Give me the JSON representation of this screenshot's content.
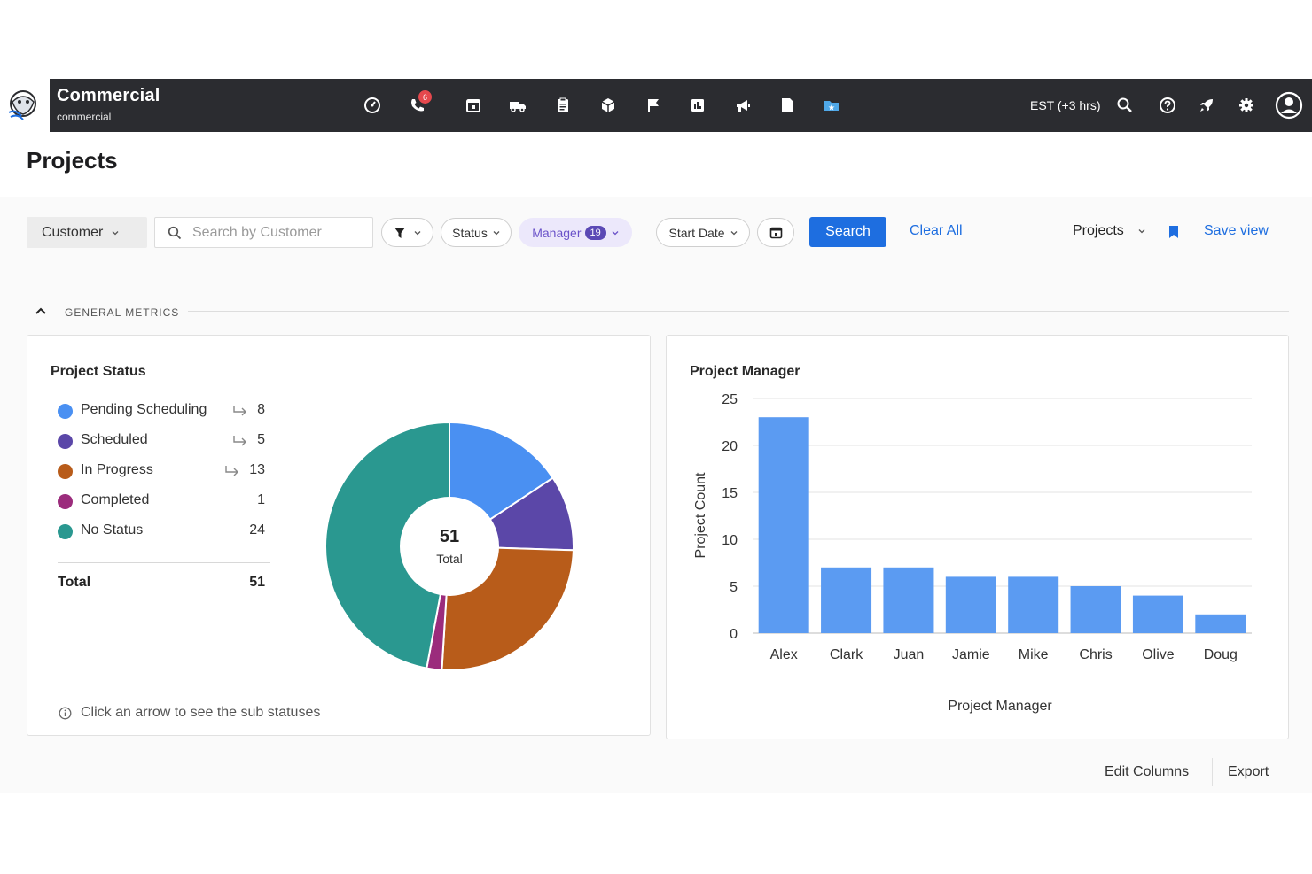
{
  "header": {
    "app_title": "Commercial",
    "app_subtitle": "commercial",
    "call_badge": "6",
    "timezone": "EST (+3 hrs)",
    "nav_icons": [
      "speedometer-icon",
      "phone-icon",
      "calendar-icon",
      "truck-icon",
      "clipboard-icon",
      "cube-icon",
      "flag-icon",
      "bar-chart-icon",
      "megaphone-icon",
      "document-icon",
      "folder-star-icon"
    ],
    "right_icons": [
      "search-icon",
      "help-icon",
      "rocket-icon",
      "gear-icon",
      "user-avatar-icon"
    ]
  },
  "page": {
    "title": "Projects"
  },
  "filters": {
    "customer_label": "Customer",
    "search_placeholder": "Search by Customer",
    "status_label": "Status",
    "manager_label": "Manager",
    "manager_count": "19",
    "start_date_label": "Start Date",
    "search_button": "Search",
    "clear_all": "Clear All",
    "view_label": "Projects",
    "save_view": "Save view"
  },
  "section": {
    "label": "GENERAL METRICS"
  },
  "status_card": {
    "title": "Project Status",
    "items": [
      {
        "label": "Pending Scheduling",
        "value": "8",
        "has_arrow": true,
        "color": "#4a90f2"
      },
      {
        "label": "Scheduled",
        "value": "5",
        "has_arrow": true,
        "color": "#5b47a8"
      },
      {
        "label": "In Progress",
        "value": "13",
        "has_arrow": true,
        "color": "#b85c1a"
      },
      {
        "label": "Completed",
        "value": "1",
        "has_arrow": false,
        "color": "#9b2c7c"
      },
      {
        "label": "No Status",
        "value": "24",
        "has_arrow": false,
        "color": "#2a9890"
      }
    ],
    "total_label": "Total",
    "total_value": "51",
    "center_value": "51",
    "center_label": "Total",
    "hint": "Click an arrow to see the sub statuses"
  },
  "chart_data": [
    {
      "type": "pie",
      "title": "Project Status",
      "categories": [
        "Pending Scheduling",
        "Scheduled",
        "In Progress",
        "Completed",
        "No Status"
      ],
      "values": [
        8,
        5,
        13,
        1,
        24
      ],
      "colors": [
        "#4a90f2",
        "#5b47a8",
        "#b85c1a",
        "#9b2c7c",
        "#2a9890"
      ]
    },
    {
      "type": "bar",
      "title": "Project Manager",
      "categories": [
        "Alex",
        "Clark",
        "Juan",
        "Jamie",
        "Mike",
        "Chris",
        "Olive",
        "Doug"
      ],
      "values": [
        23,
        7,
        7,
        6,
        6,
        5,
        4,
        2
      ],
      "xlabel": "Project Manager",
      "ylabel": "Project Count",
      "ylim": [
        0,
        25
      ],
      "yticks": [
        0,
        5,
        10,
        15,
        20,
        25
      ],
      "bar_color": "#5b9bf2",
      "grid": true
    }
  ],
  "footer": {
    "edit_columns": "Edit Columns",
    "export": "Export"
  }
}
